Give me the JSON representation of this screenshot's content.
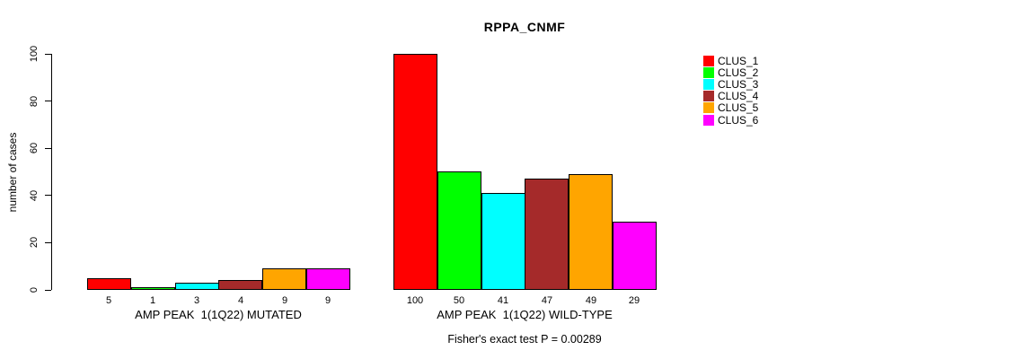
{
  "chart_data": {
    "type": "bar",
    "title": "RPPA_CNMF",
    "ylabel": "number of cases",
    "ylim": [
      0,
      100
    ],
    "yticks": [
      0,
      20,
      40,
      60,
      80,
      100
    ],
    "grid": false,
    "legend_position": "right",
    "background": "#ffffff",
    "series_colors": [
      "#FF0000",
      "#00FF00",
      "#00FFFF",
      "#A52A2A",
      "#FFA500",
      "#FF00FF"
    ],
    "legend": [
      "CLUS_1",
      "CLUS_2",
      "CLUS_3",
      "CLUS_4",
      "CLUS_5",
      "CLUS_6"
    ],
    "groups": [
      {
        "label": "AMP PEAK  1(1Q22) MUTATED",
        "values": [
          5,
          1,
          3,
          4,
          9,
          9
        ]
      },
      {
        "label": "AMP PEAK  1(1Q22) WILD-TYPE",
        "values": [
          100,
          50,
          41,
          47,
          49,
          29
        ]
      }
    ],
    "annotation": "Fisher's exact test P = 0.00289"
  }
}
